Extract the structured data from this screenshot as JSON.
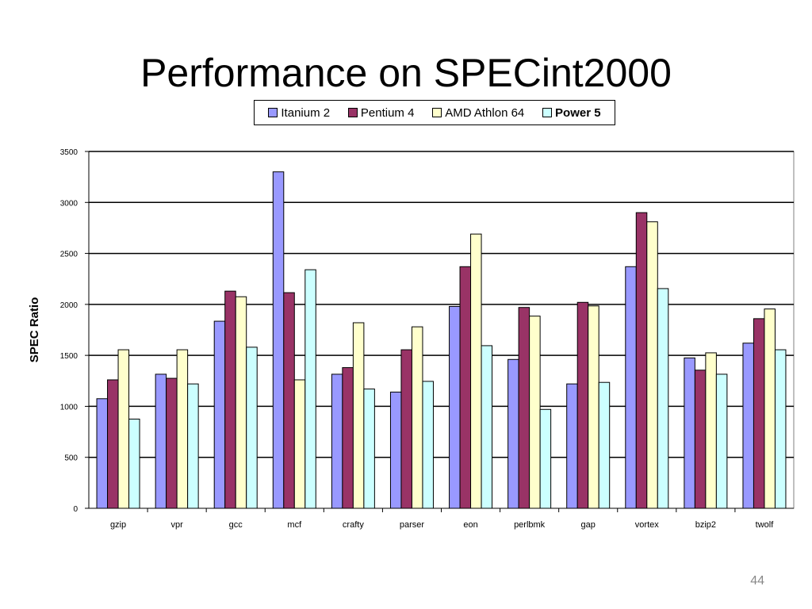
{
  "slide": {
    "title": "Performance on SPECint2000",
    "page_number": "44"
  },
  "chart_data": {
    "type": "bar",
    "title": "",
    "xlabel": "",
    "ylabel": "SPEC Ratio",
    "ylim": [
      0,
      3500
    ],
    "yticks": [
      0,
      500,
      1000,
      1500,
      2000,
      2500,
      3000,
      3500
    ],
    "ytick_labels": [
      "0",
      "500",
      "1000",
      "1500",
      "2000",
      "2500",
      "3000",
      "3500"
    ],
    "grid": "horizontal",
    "legend_position": "top-center",
    "categories": [
      "gzip",
      "vpr",
      "gcc",
      "mcf",
      "crafty",
      "parser",
      "eon",
      "perlbmk",
      "gap",
      "vortex",
      "bzip2",
      "twolf"
    ],
    "series": [
      {
        "name": "Itanium 2",
        "color": "#9999ff",
        "bold": false,
        "values": [
          1075,
          1315,
          1835,
          3300,
          1315,
          1140,
          1980,
          1460,
          1220,
          2370,
          1475,
          1620
        ]
      },
      {
        "name": "Pentium 4",
        "color": "#993366",
        "bold": false,
        "values": [
          1260,
          1275,
          2130,
          2115,
          1380,
          1555,
          2370,
          1970,
          2020,
          2900,
          1355,
          1860
        ]
      },
      {
        "name": "AMD Athlon 64",
        "color": "#ffffcc",
        "bold": false,
        "values": [
          1555,
          1555,
          2075,
          1260,
          1820,
          1780,
          2690,
          1885,
          1985,
          2810,
          1525,
          1955
        ]
      },
      {
        "name": "Power 5",
        "color": "#ccffff",
        "bold": true,
        "values": [
          875,
          1220,
          1580,
          2340,
          1170,
          1245,
          1595,
          970,
          1235,
          2155,
          1315,
          1555
        ]
      }
    ]
  }
}
